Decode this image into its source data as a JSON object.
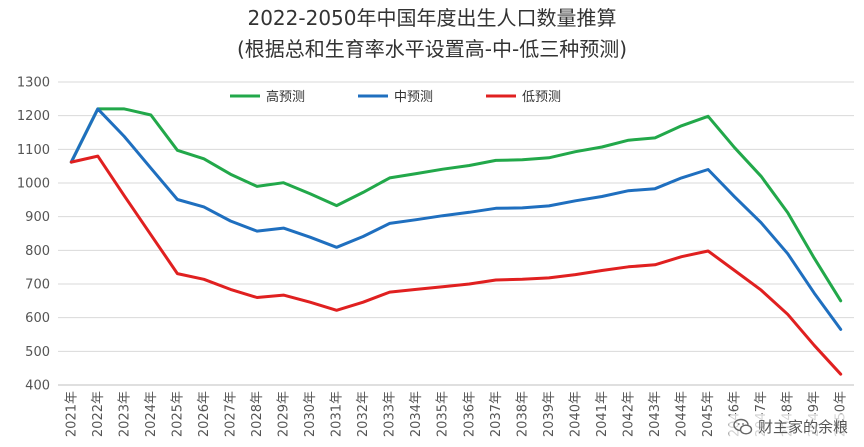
{
  "chart_data": {
    "type": "line",
    "title": "2022-2050年中国年度出生人口数量推算",
    "subtitle": "(根据总和生育率水平设置高-中-低三种预测)",
    "xlabel": "",
    "ylabel": "",
    "ylim": [
      400,
      1300
    ],
    "y_ticks": [
      400,
      500,
      600,
      700,
      800,
      900,
      1000,
      1100,
      1200,
      1300
    ],
    "grid": true,
    "legend_position": "top-center",
    "categories": [
      "2021年",
      "2022年",
      "2023年",
      "2024年",
      "2025年",
      "2026年",
      "2027年",
      "2028年",
      "2029年",
      "2030年",
      "2031年",
      "2032年",
      "2033年",
      "2034年",
      "2035年",
      "2036年",
      "2037年",
      "2038年",
      "2039年",
      "2040年",
      "2041年",
      "2042年",
      "2043年",
      "2044年",
      "2045年",
      "2046年",
      "2047年",
      "2048年",
      "2049年",
      "2050年"
    ],
    "series": [
      {
        "name": "高预测",
        "color": "#22a84a",
        "values": [
          1062,
          1220,
          1220,
          1202,
          1097,
          1072,
          1026,
          990,
          1001,
          968,
          933,
          972,
          1015,
          1028,
          1041,
          1052,
          1067,
          1069,
          1075,
          1093,
          1107,
          1127,
          1134,
          1170,
          1198,
          1105,
          1020,
          912,
          777,
          650
        ]
      },
      {
        "name": "中预测",
        "color": "#1f6fbf",
        "values": [
          1062,
          1220,
          1138,
          1044,
          951,
          929,
          887,
          857,
          866,
          839,
          809,
          841,
          880,
          891,
          903,
          913,
          925,
          926,
          932,
          947,
          960,
          977,
          983,
          1015,
          1040,
          959,
          882,
          790,
          673,
          565
        ]
      },
      {
        "name": "低预测",
        "color": "#e02020",
        "values": [
          1062,
          1080,
          962,
          846,
          731,
          714,
          684,
          660,
          667,
          646,
          622,
          646,
          676,
          684,
          692,
          700,
          712,
          714,
          718,
          728,
          740,
          751,
          757,
          781,
          798,
          740,
          682,
          610,
          518,
          432
        ]
      }
    ]
  },
  "watermark": {
    "text": "财主家的余粮",
    "icon": "wechat-icon"
  }
}
